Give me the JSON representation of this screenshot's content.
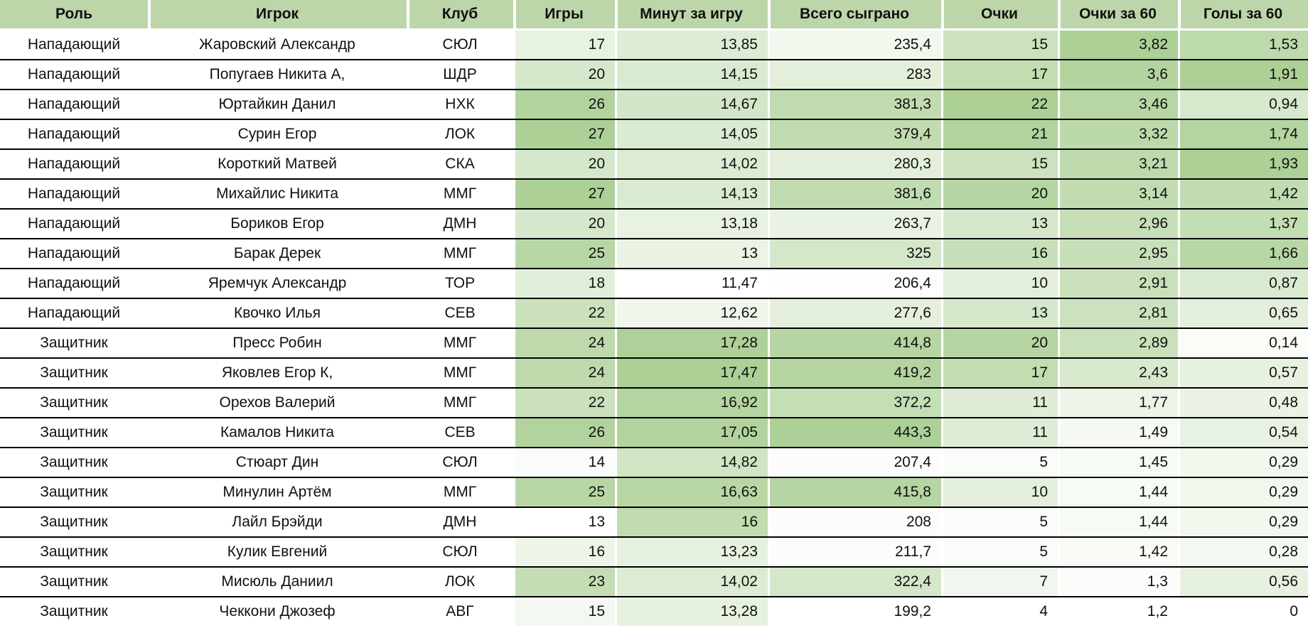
{
  "chart_data": {
    "type": "table",
    "columns": [
      {
        "key": "role",
        "label": "Роль",
        "kind": "text"
      },
      {
        "key": "player",
        "label": "Игрок",
        "kind": "text"
      },
      {
        "key": "club",
        "label": "Клуб",
        "kind": "text"
      },
      {
        "key": "games",
        "label": "Игры",
        "kind": "number_scaled"
      },
      {
        "key": "min_per_game",
        "label": "Минут за игру",
        "kind": "number_scaled"
      },
      {
        "key": "total_played",
        "label": "Всего сыграно",
        "kind": "number_scaled"
      },
      {
        "key": "points",
        "label": "Очки",
        "kind": "number_scaled"
      },
      {
        "key": "points_per_60",
        "label": "Очки за 60",
        "kind": "number_scaled"
      },
      {
        "key": "goals_per_60",
        "label": "Голы за 60",
        "kind": "number_scaled"
      }
    ],
    "rows": [
      [
        "Нападающий",
        "Жаровский Александр",
        "СЮЛ",
        17,
        13.85,
        235.4,
        15,
        3.82,
        1.53
      ],
      [
        "Нападающий",
        "Попугаев Никита А,",
        "ШДР",
        20,
        14.15,
        283,
        17,
        3.6,
        1.91
      ],
      [
        "Нападающий",
        "Юртайкин Данил",
        "НХК",
        26,
        14.67,
        381.3,
        22,
        3.46,
        0.94
      ],
      [
        "Нападающий",
        "Сурин Егор",
        "ЛОК",
        27,
        14.05,
        379.4,
        21,
        3.32,
        1.74
      ],
      [
        "Нападающий",
        "Короткий Матвей",
        "СКА",
        20,
        14.02,
        280.3,
        15,
        3.21,
        1.93
      ],
      [
        "Нападающий",
        "Михайлис Никита",
        "ММГ",
        27,
        14.13,
        381.6,
        20,
        3.14,
        1.42
      ],
      [
        "Нападающий",
        "Бориков Егор",
        "ДМН",
        20,
        13.18,
        263.7,
        13,
        2.96,
        1.37
      ],
      [
        "Нападающий",
        "Барак Дерек",
        "ММГ",
        25,
        13,
        325,
        16,
        2.95,
        1.66
      ],
      [
        "Нападающий",
        "Яремчук Александр",
        "ТОР",
        18,
        11.47,
        206.4,
        10,
        2.91,
        0.87
      ],
      [
        "Нападающий",
        "Квочко Илья",
        "СЕВ",
        22,
        12.62,
        277.6,
        13,
        2.81,
        0.65
      ],
      [
        "Защитник",
        "Пресс Робин",
        "ММГ",
        24,
        17.28,
        414.8,
        20,
        2.89,
        0.14
      ],
      [
        "Защитник",
        "Яковлев Егор К,",
        "ММГ",
        24,
        17.47,
        419.2,
        17,
        2.43,
        0.57
      ],
      [
        "Защитник",
        "Орехов Валерий",
        "ММГ",
        22,
        16.92,
        372.2,
        11,
        1.77,
        0.48
      ],
      [
        "Защитник",
        "Камалов Никита",
        "СЕВ",
        26,
        17.05,
        443.3,
        11,
        1.49,
        0.54
      ],
      [
        "Защитник",
        "Стюарт Дин",
        "СЮЛ",
        14,
        14.82,
        207.4,
        5,
        1.45,
        0.29
      ],
      [
        "Защитник",
        "Минулин Артём",
        "ММГ",
        25,
        16.63,
        415.8,
        10,
        1.44,
        0.29
      ],
      [
        "Защитник",
        "Лайл Брэйди",
        "ДМН",
        13,
        16,
        208,
        5,
        1.44,
        0.29
      ],
      [
        "Защитник",
        "Кулик Евгений",
        "СЮЛ",
        16,
        13.23,
        211.7,
        5,
        1.42,
        0.28
      ],
      [
        "Защитник",
        "Мисюль Даниил",
        "ЛОК",
        23,
        14.02,
        322.4,
        7,
        1.3,
        0.56
      ],
      [
        "Защитник",
        "Чеккони Джозеф",
        "АВГ",
        15,
        13.28,
        199.2,
        4,
        1.2,
        0
      ]
    ],
    "number_format": "comma_decimal",
    "conditional_formatting": {
      "scope": "per_column",
      "applies_to": [
        "games",
        "min_per_game",
        "total_played",
        "points",
        "points_per_60",
        "goals_per_60"
      ],
      "min_color": "#ffffff",
      "max_color": "#acd096"
    },
    "layout_hints": {
      "header_position": "top",
      "grid": "horizontal_black_lines_between_rows",
      "text_columns_align": "center",
      "number_columns_align": "right"
    }
  },
  "style": {
    "header_bg": "#bcd6aa",
    "row_line_color": "#000000",
    "separator_color": "#ffffff",
    "text_color": "#111111"
  }
}
